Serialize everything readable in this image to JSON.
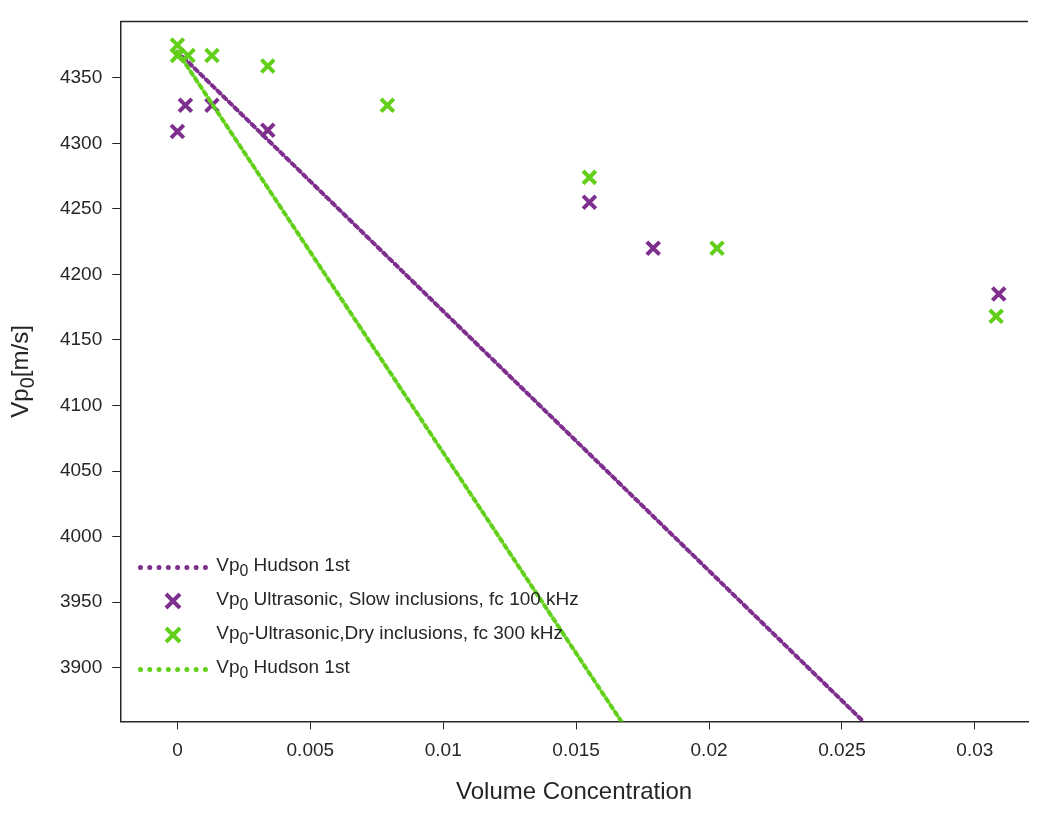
{
  "chart_data": {
    "type": "scatter",
    "xlabel": "Volume Concentration",
    "ylabel": "Vp$_{0}$[m/s]",
    "xlim": [
      -0.00215,
      0.032
    ],
    "xticks": [
      0,
      0.005,
      0.01,
      0.015,
      0.02,
      0.025,
      0.03
    ],
    "ylim": [
      3859,
      4393
    ],
    "yticks": [
      3900,
      3950,
      4000,
      4050,
      4100,
      4150,
      4200,
      4250,
      4300,
      4350
    ],
    "grid": false,
    "legend": "bottom left",
    "series": [
      {
        "name": "Vp$_{0}$ Hudson 1st",
        "type": "line",
        "color": "#7e2f8e",
        "marker": "none",
        "line_style": "dotted",
        "x": [
          0,
          0.0258
        ],
        "values": [
          4370,
          3859
        ]
      },
      {
        "name": "Vp$_{0}$ Ultrasonic, Slow inclusions, fc 100 kHz",
        "type": "scatter",
        "color": "#7e2f8e",
        "marker": "cross",
        "x": [
          0,
          0.0003,
          0.0013,
          0.0034,
          0.0155,
          0.0179,
          0.0203,
          0.0309
        ],
        "values": [
          4309,
          4329,
          4329,
          4310,
          4255,
          4220,
          null,
          4185
        ]
      },
      {
        "name": "Vp$_{0}$-Ultrasonic,Dry inclusions, fc 300 kHz",
        "type": "scatter",
        "color": "#62d01a",
        "marker": "cross",
        "x": [
          0,
          0,
          0.0004,
          0.0013,
          0.0034,
          0.0079,
          0.0155,
          0.0203,
          0.0308
        ],
        "values": [
          4375,
          4367,
          4367,
          4367,
          4359,
          4329,
          4274,
          4220,
          4168
        ]
      },
      {
        "name": "Vp$_{0}$ Hudson 1st",
        "type": "line",
        "color": "#62d01a",
        "marker": "none",
        "line_style": "dotted",
        "x": [
          0,
          0.0167
        ],
        "values": [
          4370,
          3859
        ]
      }
    ]
  }
}
